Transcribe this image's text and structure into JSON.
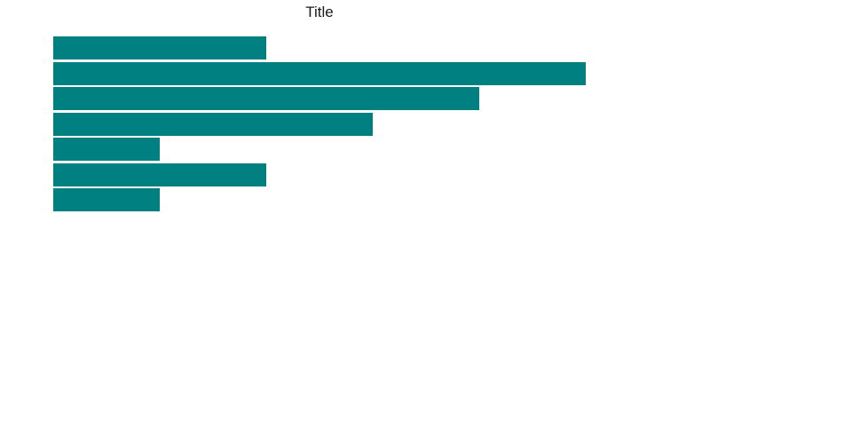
{
  "chart": {
    "title": "Title"
  },
  "chart_data": {
    "type": "bar",
    "orientation": "horizontal",
    "title": "Title",
    "xlabel": "",
    "ylabel": "",
    "categories": [
      "",
      "",
      "",
      "",
      "",
      "",
      ""
    ],
    "values": [
      2,
      5,
      4,
      3,
      1,
      2,
      1
    ],
    "xlim": [
      0,
      5
    ],
    "bar_color": "#008080",
    "grid": false,
    "legend": false,
    "axes_visible": false
  }
}
